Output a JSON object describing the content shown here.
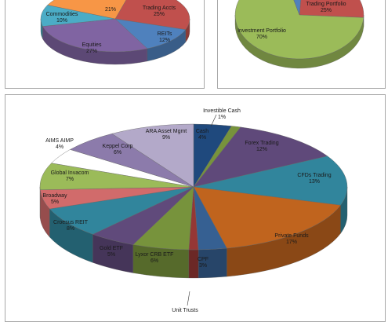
{
  "chart_data": [
    {
      "type": "pie",
      "title": "",
      "slices": [
        {
          "label": "Trading Accts",
          "value": 25,
          "value_label": "25%",
          "color": "#c0504d"
        },
        {
          "label": "REITs",
          "value": 12,
          "value_label": "12%",
          "color": "#4f81bd"
        },
        {
          "label": "Equities",
          "value": 27,
          "value_label": "27%",
          "color": "#8064a2"
        },
        {
          "label": "Commodities",
          "value": 10,
          "value_label": "10%",
          "color": "#4bacc6"
        },
        {
          "label": "",
          "value": 21,
          "value_label": "21%",
          "color": "#f79646"
        }
      ],
      "note": "Slice remainder is cropped at top of image."
    },
    {
      "type": "pie",
      "title": "",
      "slices": [
        {
          "label": "Trading Portfolio",
          "value": 25,
          "value_label": "25%",
          "color": "#c0504d"
        },
        {
          "label": "Investment Portfolio",
          "value": 70,
          "value_label": "70%",
          "color": "#9bbb59"
        },
        {
          "label": "",
          "value": 5,
          "value_label": "",
          "color": "#4f81bd"
        }
      ]
    },
    {
      "type": "pie",
      "title": "",
      "slices": [
        {
          "label": "Cash",
          "value": 4,
          "value_label": "4%",
          "color": "#1f497d"
        },
        {
          "label": "Investible Cash",
          "value": 1,
          "value_label": "1%",
          "color": "#77933c"
        },
        {
          "label": "Forex Trading",
          "value": 12,
          "value_label": "12%",
          "color": "#5f497a"
        },
        {
          "label": "CFDs Trading",
          "value": 13,
          "value_label": "13%",
          "color": "#31859c"
        },
        {
          "label": "Private Funds",
          "value": 17,
          "value_label": "17%",
          "color": "#c0641e"
        },
        {
          "label": "CPF",
          "value": 3,
          "value_label": "3%",
          "color": "#366092"
        },
        {
          "label": "Unit Trusts",
          "value": 1,
          "value_label": "",
          "color": "#953735"
        },
        {
          "label": "Lyxor CRB ETF",
          "value": 6,
          "value_label": "6%",
          "color": "#77933c"
        },
        {
          "label": "Gold ETF",
          "value": 5,
          "value_label": "5%",
          "color": "#604a7b"
        },
        {
          "label": "Croesus REIT",
          "value": 8,
          "value_label": "8%",
          "color": "#31859c"
        },
        {
          "label": "Broadway",
          "value": 5,
          "value_label": "5%",
          "color": "#d16b6b"
        },
        {
          "label": "Global Invacom",
          "value": 7,
          "value_label": "7%",
          "color": "#9bbb59"
        },
        {
          "label": "AIMS AIMP",
          "value": 4,
          "value_label": "4%",
          "color": "#ffffff"
        },
        {
          "label": "Keppel Corp",
          "value": 6,
          "value_label": "6%",
          "color": "#8c7bab"
        },
        {
          "label": "ARA Asset Mgmt",
          "value": 9,
          "value_label": "9%",
          "color": "#b3a9c9"
        }
      ]
    }
  ]
}
